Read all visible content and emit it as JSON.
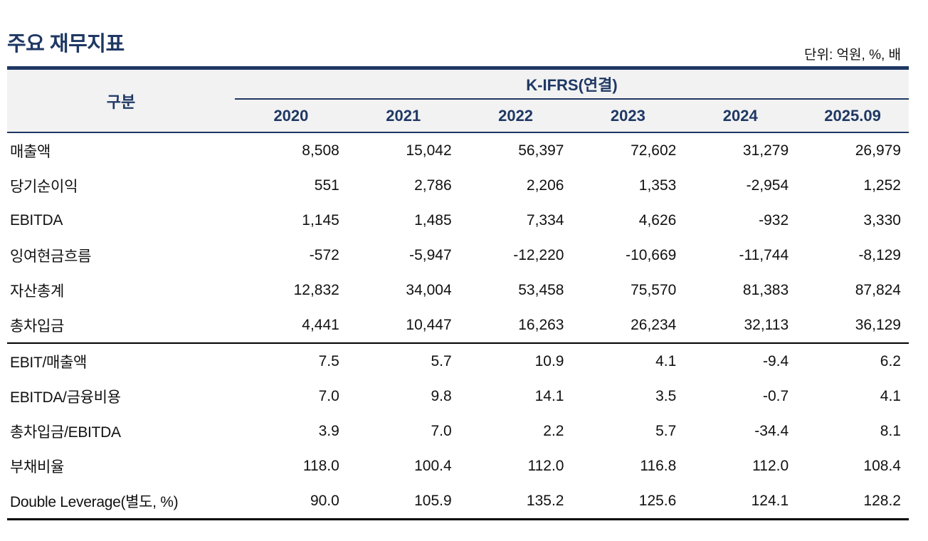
{
  "title": "주요 재무지표",
  "unit_label": "단위: 억원, %, 배",
  "colors": {
    "navy": "#1f3864",
    "header_bg": "#f2f2f2",
    "text": "#111111"
  },
  "table": {
    "label_header": "구분",
    "group_header": "K-IFRS(연결)",
    "year_headers": [
      "2020",
      "2021",
      "2022",
      "2023",
      "2024",
      "2025.09"
    ],
    "sections": [
      {
        "rows": [
          {
            "label": "매출액",
            "values": [
              "8,508",
              "15,042",
              "56,397",
              "72,602",
              "31,279",
              "26,979"
            ]
          },
          {
            "label": "당기순이익",
            "values": [
              "551",
              "2,786",
              "2,206",
              "1,353",
              "-2,954",
              "1,252"
            ]
          },
          {
            "label": "EBITDA",
            "values": [
              "1,145",
              "1,485",
              "7,334",
              "4,626",
              "-932",
              "3,330"
            ]
          },
          {
            "label": "잉여현금흐름",
            "values": [
              "-572",
              "-5,947",
              "-12,220",
              "-10,669",
              "-11,744",
              "-8,129"
            ]
          },
          {
            "label": "자산총계",
            "values": [
              "12,832",
              "34,004",
              "53,458",
              "75,570",
              "81,383",
              "87,824"
            ]
          },
          {
            "label": "총차입금",
            "values": [
              "4,441",
              "10,447",
              "16,263",
              "26,234",
              "32,113",
              "36,129"
            ]
          }
        ]
      },
      {
        "rows": [
          {
            "label": "EBIT/매출액",
            "values": [
              "7.5",
              "5.7",
              "10.9",
              "4.1",
              "-9.4",
              "6.2"
            ]
          },
          {
            "label": "EBITDA/금융비용",
            "values": [
              "7.0",
              "9.8",
              "14.1",
              "3.5",
              "-0.7",
              "4.1"
            ]
          },
          {
            "label": "총차입금/EBITDA",
            "values": [
              "3.9",
              "7.0",
              "2.2",
              "5.7",
              "-34.4",
              "8.1"
            ]
          },
          {
            "label": "부채비율",
            "values": [
              "118.0",
              "100.4",
              "112.0",
              "116.8",
              "112.0",
              "108.4"
            ]
          },
          {
            "label": "Double Leverage(별도, %)",
            "values": [
              "90.0",
              "105.9",
              "135.2",
              "125.6",
              "124.1",
              "128.2"
            ]
          }
        ]
      }
    ]
  }
}
